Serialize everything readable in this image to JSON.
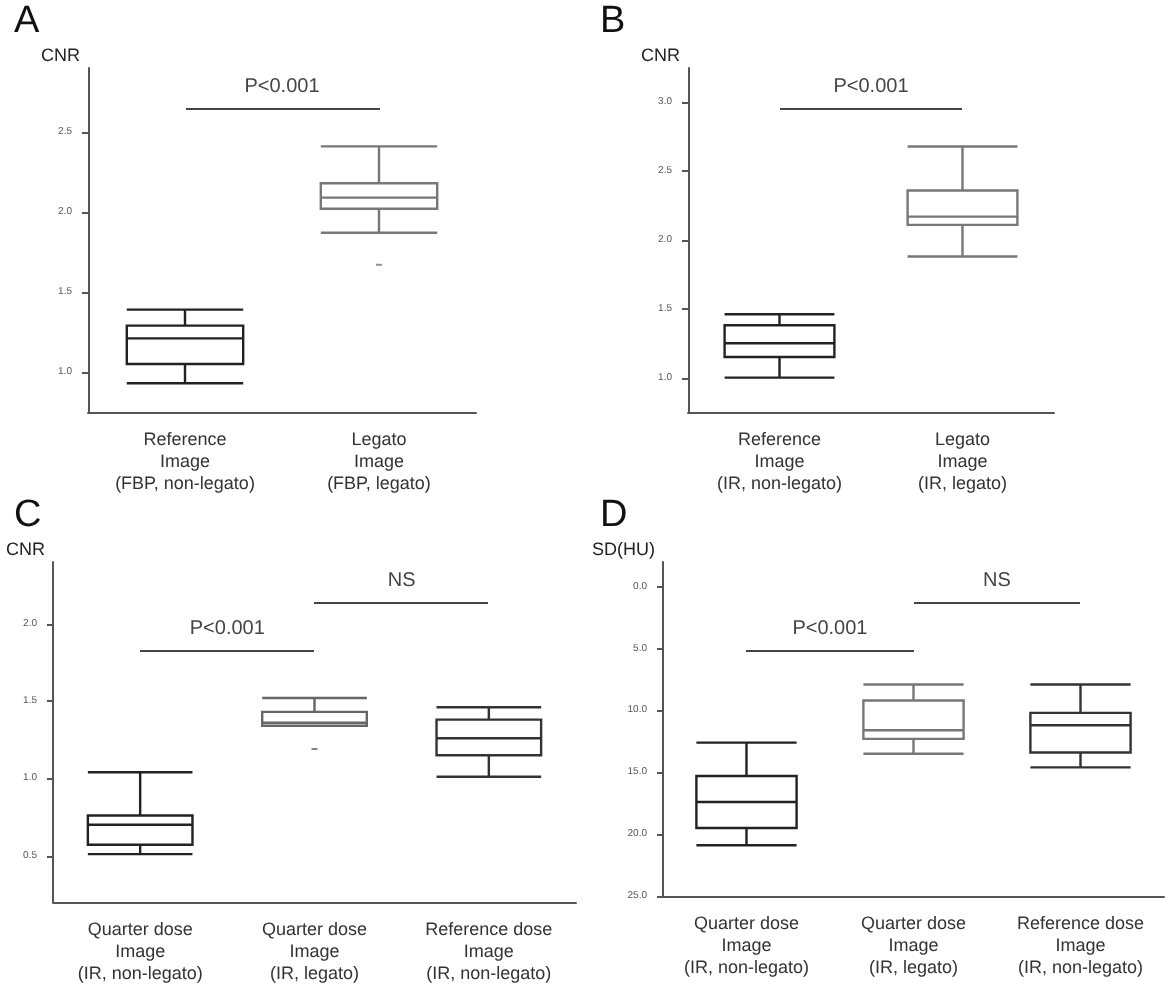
{
  "chart_data": [
    {
      "type": "box",
      "title": "A",
      "ylabel": "CNR",
      "categories": [
        "Reference\nImage\n(FBP, non-legato)",
        "Legato\nImage\n(FBP, legato)"
      ],
      "colors": [
        "#222222",
        "#777777"
      ],
      "boxes": [
        {
          "low": 0.93,
          "q1": 1.05,
          "median": 1.21,
          "q3": 1.29,
          "high": 1.39
        },
        {
          "low": 1.87,
          "q1": 2.02,
          "median": 2.09,
          "q3": 2.18,
          "high": 2.41,
          "outliers": [
            1.67
          ]
        }
      ],
      "ylim": [
        0.75,
        2.9
      ],
      "yticks": [
        {
          "value": 1,
          "label": "1.0"
        },
        1.5,
        {
          "value": 2,
          "label": "2.0"
        },
        2.5
      ],
      "annotations": [
        "P<0.001"
      ]
    },
    {
      "type": "box",
      "title": "B",
      "ylabel": "CNR",
      "categories": [
        "Reference\nImage\n(IR, non-legato)",
        "Legato\nImage\n(IR, legato)"
      ],
      "colors": [
        "#222222",
        "#777777"
      ],
      "boxes": [
        {
          "low": 1.0,
          "q1": 1.15,
          "median": 1.25,
          "q3": 1.38,
          "high": 1.46
        },
        {
          "low": 1.88,
          "q1": 2.11,
          "median": 2.17,
          "q3": 2.36,
          "high": 2.68
        }
      ],
      "ylim": [
        0.75,
        3.25
      ],
      "yticks": [
        {
          "value": 1,
          "label": "1.0"
        },
        1.5,
        {
          "value": 2,
          "label": "2.0"
        },
        2.5,
        {
          "value": 3,
          "label": "3.0"
        }
      ],
      "annotations": [
        "P<0.001"
      ]
    },
    {
      "type": "box",
      "title": "C",
      "ylabel": "CNR",
      "categories": [
        "Quarter dose\nImage\n(IR, non-legato)",
        "Quarter dose\nImage\n(IR, legato)",
        "Reference dose\nImage\n(IR, non-legato)"
      ],
      "colors": [
        "#222222",
        "#666666",
        "#333333"
      ],
      "boxes": [
        {
          "low": 0.51,
          "q1": 0.57,
          "median": 0.7,
          "q3": 0.76,
          "high": 1.04
        },
        {
          "low": 1.34,
          "q1": 1.34,
          "median": 1.36,
          "q3": 1.43,
          "high": 1.52,
          "outliers": [
            1.19
          ]
        },
        {
          "low": 1.01,
          "q1": 1.15,
          "median": 1.26,
          "q3": 1.38,
          "high": 1.46
        }
      ],
      "ylim": [
        0.2,
        2.4
      ],
      "yticks": [
        0.5,
        {
          "value": 1,
          "label": "1.0"
        },
        1.5,
        {
          "value": 2,
          "label": "2.0"
        }
      ],
      "annotations": [
        "P<0.001",
        "NS"
      ]
    },
    {
      "type": "box",
      "title": "D",
      "ylabel": "SD(HU)",
      "categories": [
        "Quarter dose\nImage\n(IR, non-legato)",
        "Quarter dose\nImage\n(IR, legato)",
        "Reference dose\nImage\n(IR, non-legato)"
      ],
      "colors": [
        "#222222",
        "#777777",
        "#333333"
      ],
      "boxes": [
        {
          "low": 12.6,
          "q1": 15.3,
          "median": 17.4,
          "q3": 19.5,
          "high": 20.9
        },
        {
          "low": 7.9,
          "q1": 9.2,
          "median": 11.6,
          "q3": 12.3,
          "high": 13.5
        },
        {
          "low": 7.9,
          "q1": 10.2,
          "median": 11.2,
          "q3": 13.4,
          "high": 14.6
        }
      ],
      "ylim": [
        25,
        -2
      ],
      "yticks": [
        {
          "value": 0,
          "label": "0.0"
        },
        {
          "value": 5,
          "label": "5.0"
        },
        {
          "value": 10,
          "label": "10.0"
        },
        {
          "value": 15,
          "label": "15.0"
        },
        {
          "value": 20,
          "label": "20.0"
        },
        {
          "value": 25,
          "label": "25.0"
        }
      ],
      "annotations": [
        "P<0.001",
        "NS"
      ]
    }
  ]
}
